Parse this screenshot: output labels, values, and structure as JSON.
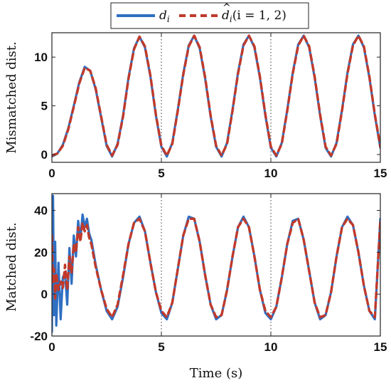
{
  "chart_data": [
    {
      "type": "line",
      "ylabel": "Mismatched dist.",
      "xlabel": "",
      "xlim": [
        0,
        15
      ],
      "ylim": [
        -0.8,
        12.5
      ],
      "xticks": [
        "0",
        "5",
        "10",
        "15"
      ],
      "yticks": [
        "0",
        "5",
        "10"
      ],
      "vlines": [
        5,
        10
      ],
      "grid": false,
      "legend_position": "top-center",
      "series": [
        {
          "name": "d_i",
          "x": [
            0,
            0.25,
            0.5,
            0.75,
            1.0,
            1.25,
            1.5,
            1.75,
            2.0,
            2.25,
            2.5,
            2.75,
            3.0,
            3.25,
            3.5,
            3.75,
            4.0,
            4.25,
            4.5,
            4.75,
            5.0,
            5.25,
            5.5,
            5.75,
            6.0,
            6.25,
            6.5,
            6.75,
            7.0,
            7.25,
            7.5,
            7.75,
            8.0,
            8.25,
            8.5,
            8.75,
            9.0,
            9.25,
            9.5,
            9.75,
            10.0,
            10.25,
            10.5,
            10.75,
            11.0,
            11.25,
            11.5,
            11.75,
            12.0,
            12.25,
            12.5,
            12.75,
            13.0,
            13.25,
            13.5,
            13.75,
            14.0,
            14.25,
            14.5,
            14.75,
            15.0
          ],
          "y": [
            -0.2,
            0.1,
            1.0,
            2.7,
            5.0,
            7.4,
            9.0,
            8.6,
            6.7,
            3.8,
            0.9,
            -0.2,
            1.1,
            4.0,
            7.9,
            10.9,
            12.1,
            11.0,
            8.0,
            4.0,
            0.8,
            -0.2,
            1.2,
            4.6,
            8.3,
            11.2,
            12.2,
            10.9,
            7.8,
            3.9,
            0.8,
            -0.2,
            1.2,
            4.6,
            8.4,
            11.3,
            12.2,
            11.0,
            7.9,
            4.0,
            0.7,
            -0.2,
            1.2,
            4.6,
            8.4,
            11.3,
            12.2,
            11.0,
            7.9,
            4.0,
            0.7,
            -0.2,
            1.2,
            4.6,
            8.4,
            11.3,
            12.2,
            11.0,
            7.9,
            4.0,
            0.7
          ]
        },
        {
          "name": "d̂_i (i = 1, 2)",
          "x": [
            0,
            0.25,
            0.5,
            0.75,
            1.0,
            1.25,
            1.5,
            1.75,
            2.0,
            2.25,
            2.5,
            2.75,
            3.0,
            3.25,
            3.5,
            3.75,
            4.0,
            4.25,
            4.5,
            4.75,
            5.0,
            5.25,
            5.5,
            5.75,
            6.0,
            6.25,
            6.5,
            6.75,
            7.0,
            7.25,
            7.5,
            7.75,
            8.0,
            8.25,
            8.5,
            8.75,
            9.0,
            9.25,
            9.5,
            9.75,
            10.0,
            10.25,
            10.5,
            10.75,
            11.0,
            11.25,
            11.5,
            11.75,
            12.0,
            12.25,
            12.5,
            12.75,
            13.0,
            13.25,
            13.5,
            13.75,
            14.0,
            14.25,
            14.5,
            14.75,
            15.0
          ],
          "y": [
            -0.1,
            0.1,
            0.9,
            2.6,
            4.9,
            7.3,
            8.9,
            8.6,
            6.8,
            3.9,
            1.0,
            -0.1,
            1.0,
            3.9,
            7.8,
            10.8,
            12.1,
            11.1,
            8.1,
            4.1,
            0.9,
            -0.1,
            1.1,
            4.5,
            8.2,
            11.1,
            12.2,
            11.0,
            7.9,
            4.0,
            0.9,
            -0.1,
            1.1,
            4.5,
            8.3,
            11.2,
            12.2,
            11.1,
            8.0,
            4.1,
            0.8,
            -0.1,
            1.1,
            4.5,
            8.3,
            11.2,
            12.2,
            11.1,
            8.0,
            4.1,
            0.8,
            -0.1,
            1.1,
            4.5,
            8.3,
            11.2,
            12.2,
            11.1,
            8.0,
            4.1,
            0.8
          ]
        }
      ]
    },
    {
      "type": "line",
      "ylabel": "Matched dist.",
      "xlabel": "Time (s)",
      "xlim": [
        0,
        15
      ],
      "ylim": [
        -20,
        48
      ],
      "xticks": [
        "0",
        "5",
        "10",
        "15"
      ],
      "yticks": [
        "-20",
        "0",
        "20",
        "40"
      ],
      "vlines": [
        5,
        10
      ],
      "grid": false,
      "series": [
        {
          "name": "d_i",
          "x": [
            0,
            0.05,
            0.1,
            0.15,
            0.2,
            0.3,
            0.4,
            0.5,
            0.6,
            0.7,
            0.8,
            0.9,
            1.0,
            1.1,
            1.2,
            1.3,
            1.4,
            1.5,
            1.6,
            1.7,
            1.8,
            2.0,
            2.25,
            2.5,
            2.75,
            3.0,
            3.25,
            3.5,
            3.75,
            4.0,
            4.25,
            4.5,
            4.75,
            5.0,
            5.25,
            5.5,
            5.75,
            6.0,
            6.25,
            6.5,
            6.75,
            7.0,
            7.25,
            7.5,
            7.75,
            8.0,
            8.25,
            8.5,
            8.75,
            9.0,
            9.25,
            9.5,
            9.75,
            10.0,
            10.25,
            10.5,
            10.75,
            11.0,
            11.25,
            11.5,
            11.75,
            12.0,
            12.25,
            12.5,
            12.75,
            13.0,
            13.25,
            13.5,
            13.75,
            14.0,
            14.25,
            14.5,
            14.75,
            15.0
          ],
          "y": [
            -18,
            47,
            -10,
            25,
            -15,
            15,
            -12,
            8,
            10,
            -5,
            22,
            5,
            28,
            18,
            35,
            26,
            38,
            32,
            36,
            29,
            26,
            14,
            2,
            -8,
            -12,
            -6,
            8,
            24,
            34,
            37,
            30,
            15,
            1,
            -9,
            -12,
            -4,
            12,
            28,
            37,
            36,
            25,
            9,
            -5,
            -12,
            -10,
            2,
            18,
            32,
            37,
            32,
            18,
            2,
            -9,
            -12,
            -6,
            8,
            24,
            35,
            36,
            26,
            11,
            -4,
            -12,
            -10,
            1,
            18,
            32,
            37,
            33,
            20,
            4,
            -8,
            -12,
            36
          ]
        },
        {
          "name": "d̂_i (i = 1, 2)",
          "x": [
            0,
            0.05,
            0.1,
            0.15,
            0.2,
            0.3,
            0.4,
            0.5,
            0.6,
            0.7,
            0.8,
            0.9,
            1.0,
            1.1,
            1.2,
            1.3,
            1.4,
            1.5,
            1.6,
            1.7,
            1.8,
            2.0,
            2.25,
            2.5,
            2.75,
            3.0,
            3.25,
            3.5,
            3.75,
            4.0,
            4.25,
            4.5,
            4.75,
            5.0,
            5.25,
            5.5,
            5.75,
            6.0,
            6.25,
            6.5,
            6.75,
            7.0,
            7.25,
            7.5,
            7.75,
            8.0,
            8.25,
            8.5,
            8.75,
            9.0,
            9.25,
            9.5,
            9.75,
            10.0,
            10.25,
            10.5,
            10.75,
            11.0,
            11.25,
            11.5,
            11.75,
            12.0,
            12.25,
            12.5,
            12.75,
            13.0,
            13.25,
            13.5,
            13.75,
            14.0,
            14.25,
            14.5,
            14.75,
            15.0
          ],
          "y": [
            28,
            5,
            12,
            -2,
            10,
            2,
            6,
            3,
            14,
            2,
            18,
            10,
            24,
            20,
            32,
            25,
            34,
            30,
            33,
            27,
            24,
            13,
            2,
            -7,
            -11,
            -5,
            9,
            24,
            34,
            36,
            30,
            15,
            1,
            -8,
            -11,
            -4,
            12,
            28,
            36,
            36,
            25,
            9,
            -5,
            -11,
            -10,
            2,
            18,
            32,
            36,
            32,
            18,
            2,
            -8,
            -11,
            -6,
            8,
            24,
            34,
            36,
            26,
            11,
            -4,
            -11,
            -10,
            1,
            18,
            32,
            36,
            33,
            20,
            4,
            -8,
            -11,
            35
          ]
        }
      ]
    }
  ],
  "legend": {
    "series1_label": "d",
    "series1_sub": "i",
    "series2_label": "d",
    "series2_sub": "i",
    "series2_suffix": "(i = 1, 2)"
  },
  "colors": {
    "series1": "#2F6FC2",
    "series2": "#C03A2B"
  }
}
